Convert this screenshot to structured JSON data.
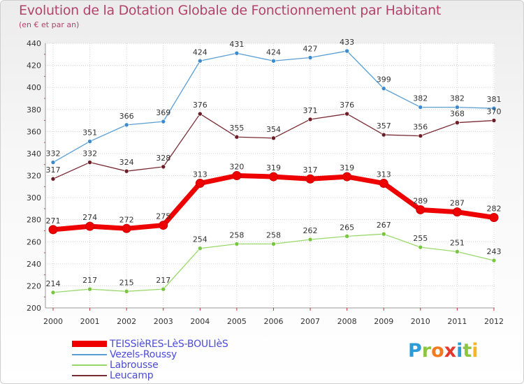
{
  "title": "Evolution de la Dotation Globale de Fonctionnement par Habitant",
  "subtitle": "(en € et par an)",
  "logo": {
    "text": "Proxiti",
    "letters": [
      {
        "char": "P",
        "color": "#2d9bd6"
      },
      {
        "char": "r",
        "color": "#8cc63e"
      },
      {
        "char": "o",
        "color": "#f47b20"
      },
      {
        "char": "x",
        "color": "#e2382d"
      },
      {
        "char": "i",
        "color": "#2d9bd6"
      },
      {
        "char": "t",
        "color": "#8cc63e"
      },
      {
        "char": "i",
        "color": "#f7b32b"
      }
    ]
  },
  "chart_data": {
    "type": "line",
    "title": "Evolution de la Dotation Globale de Fonctionnement par Habitant",
    "subtitle": "(en € et par an)",
    "xlabel": "",
    "ylabel": "",
    "x": [
      "2000",
      "2001",
      "2002",
      "2003",
      "2004",
      "2005",
      "2006",
      "2007",
      "2008",
      "2009",
      "2010",
      "2011",
      "2012"
    ],
    "ylim": [
      200,
      440
    ],
    "yticks": [
      "200",
      "220",
      "240",
      "260",
      "280",
      "300",
      "320",
      "340",
      "360",
      "380",
      "400",
      "420",
      "440"
    ],
    "grid": true,
    "legend_position": "bottom-left",
    "series": [
      {
        "name": "Vezels-Roussy",
        "color": "#5a9fd4",
        "marker": "#3d8bcf",
        "weight": "thin",
        "values": [
          332,
          351,
          366,
          369,
          424,
          431,
          424,
          427,
          433,
          399,
          382,
          382,
          381
        ],
        "labels": [
          "332",
          "351",
          "366",
          "369",
          "424",
          "431",
          "424",
          "427",
          "433",
          "399",
          "382",
          "382",
          "381"
        ]
      },
      {
        "name": "Leucamp",
        "color": "#7a2a33",
        "marker": "#6b1e28",
        "weight": "thin",
        "values": [
          317,
          332,
          324,
          328,
          376,
          355,
          354,
          371,
          376,
          357,
          356,
          368,
          370
        ],
        "labels": [
          "317",
          "332",
          "324",
          "328",
          "376",
          "355",
          "354",
          "371",
          "376",
          "357",
          "356",
          "368",
          "370"
        ]
      },
      {
        "name": "TEISSièRES-LèS-BOULIèS",
        "color": "#ee0000",
        "marker": "#ee0000",
        "weight": "thick",
        "values": [
          271,
          274,
          272,
          275,
          313,
          320,
          319,
          317,
          319,
          313,
          289,
          287,
          282
        ],
        "labels": [
          "271",
          "274",
          "272",
          "275",
          "313",
          "320",
          "319",
          "317",
          "319",
          "313",
          "289",
          "287",
          "282"
        ]
      },
      {
        "name": "Labrousse",
        "color": "#99d96b",
        "marker": "#78c63f",
        "weight": "thin",
        "values": [
          214,
          217,
          215,
          217,
          254,
          258,
          258,
          262,
          265,
          267,
          255,
          251,
          243
        ],
        "labels": [
          "214",
          "217",
          "215",
          "217",
          "254",
          "258",
          "258",
          "262",
          "265",
          "267",
          "255",
          "251",
          "243"
        ]
      }
    ],
    "legend": [
      "TEISSièRES-LèS-BOULIèS",
      "Vezels-Roussy",
      "Labrousse",
      "Leucamp"
    ]
  }
}
